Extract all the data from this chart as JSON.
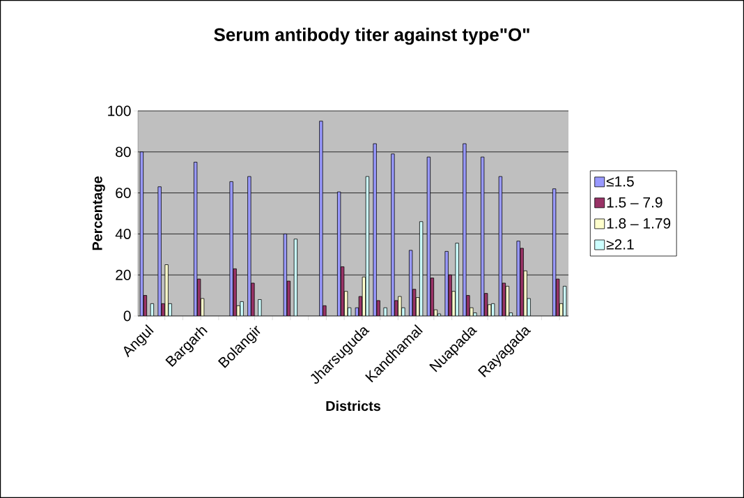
{
  "chart_data": {
    "type": "bar",
    "title": "Serum antibody titer against type\"O\"",
    "xlabel": "Districts",
    "ylabel": "Percentage",
    "categories": [
      "Angul",
      null,
      null,
      "Bargarh",
      null,
      null,
      "Bolangir",
      null,
      null,
      null,
      null,
      null,
      "Jharsuguda",
      null,
      null,
      "Kandhamal",
      null,
      null,
      "Nuapada",
      null,
      null,
      "Rayagada",
      null,
      null
    ],
    "series": [
      {
        "name": "≤1.5",
        "color": "#9999ff",
        "values": [
          80,
          63,
          null,
          75,
          null,
          65.5,
          68,
          null,
          40,
          null,
          95,
          60.5,
          4,
          84,
          79,
          32,
          77.5,
          31.5,
          84,
          77.5,
          68,
          36.5,
          null,
          62
        ]
      },
      {
        "name": "1.5 – 7.9",
        "color": "#993366",
        "values": [
          10,
          6,
          null,
          18,
          null,
          23,
          16,
          null,
          17,
          null,
          5,
          24,
          9.5,
          7.5,
          7.5,
          13,
          18.5,
          20,
          10,
          11,
          16,
          33,
          null,
          18
        ]
      },
      {
        "name": "1.8 – 1.79",
        "color": "#ffffcc",
        "values": [
          null,
          25,
          null,
          8.5,
          null,
          5,
          null,
          null,
          null,
          null,
          null,
          12,
          19,
          null,
          9.5,
          9,
          3,
          12,
          4,
          5.5,
          14.5,
          22,
          null,
          6
        ]
      },
      {
        "name": "≥2.1",
        "color": "#ccffff",
        "values": [
          6,
          6,
          null,
          null,
          null,
          7,
          8,
          null,
          37.5,
          null,
          null,
          4,
          68,
          4,
          4,
          46,
          1,
          35.5,
          1.5,
          6,
          1.5,
          8.5,
          null,
          14.5
        ]
      }
    ],
    "ylim": [
      0,
      100
    ],
    "yticks": [
      0,
      20,
      40,
      60,
      80,
      100
    ],
    "grid": "y",
    "legend": "right"
  }
}
